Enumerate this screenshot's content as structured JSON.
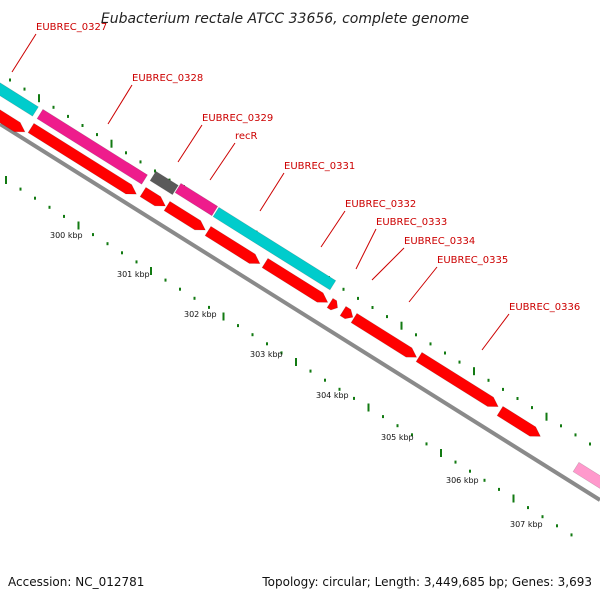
{
  "title": "Eubacterium rectale ATCC 33656, complete genome",
  "accession_text": "Accession: NC_012781",
  "summary_text": "Topology: circular; Length: 3,449,685 bp; Genes: 3,693",
  "colors": {
    "cds_forward": "#ff0000",
    "feature_cyan": "#00cccc",
    "feature_magenta": "#ee1c8c",
    "feature_gray": "#5a5a5a",
    "feature_pink": "#ff99cc",
    "backbone": "#8a8a8a",
    "tick_green": "#127a12",
    "label_red": "#cc0000"
  },
  "genes": [
    {
      "name": "EUBREC_0327"
    },
    {
      "name": "EUBREC_0328"
    },
    {
      "name": "EUBREC_0329"
    },
    {
      "name": "recR"
    },
    {
      "name": "EUBREC_0331"
    },
    {
      "name": "EUBREC_0332"
    },
    {
      "name": "EUBREC_0333"
    },
    {
      "name": "EUBREC_0334"
    },
    {
      "name": "EUBREC_0335"
    },
    {
      "name": "EUBREC_0336"
    }
  ],
  "position_ticks": [
    "300 kbp",
    "301 kbp",
    "302 kbp",
    "303 kbp",
    "304 kbp",
    "305 kbp",
    "306 kbp",
    "307 kbp"
  ]
}
